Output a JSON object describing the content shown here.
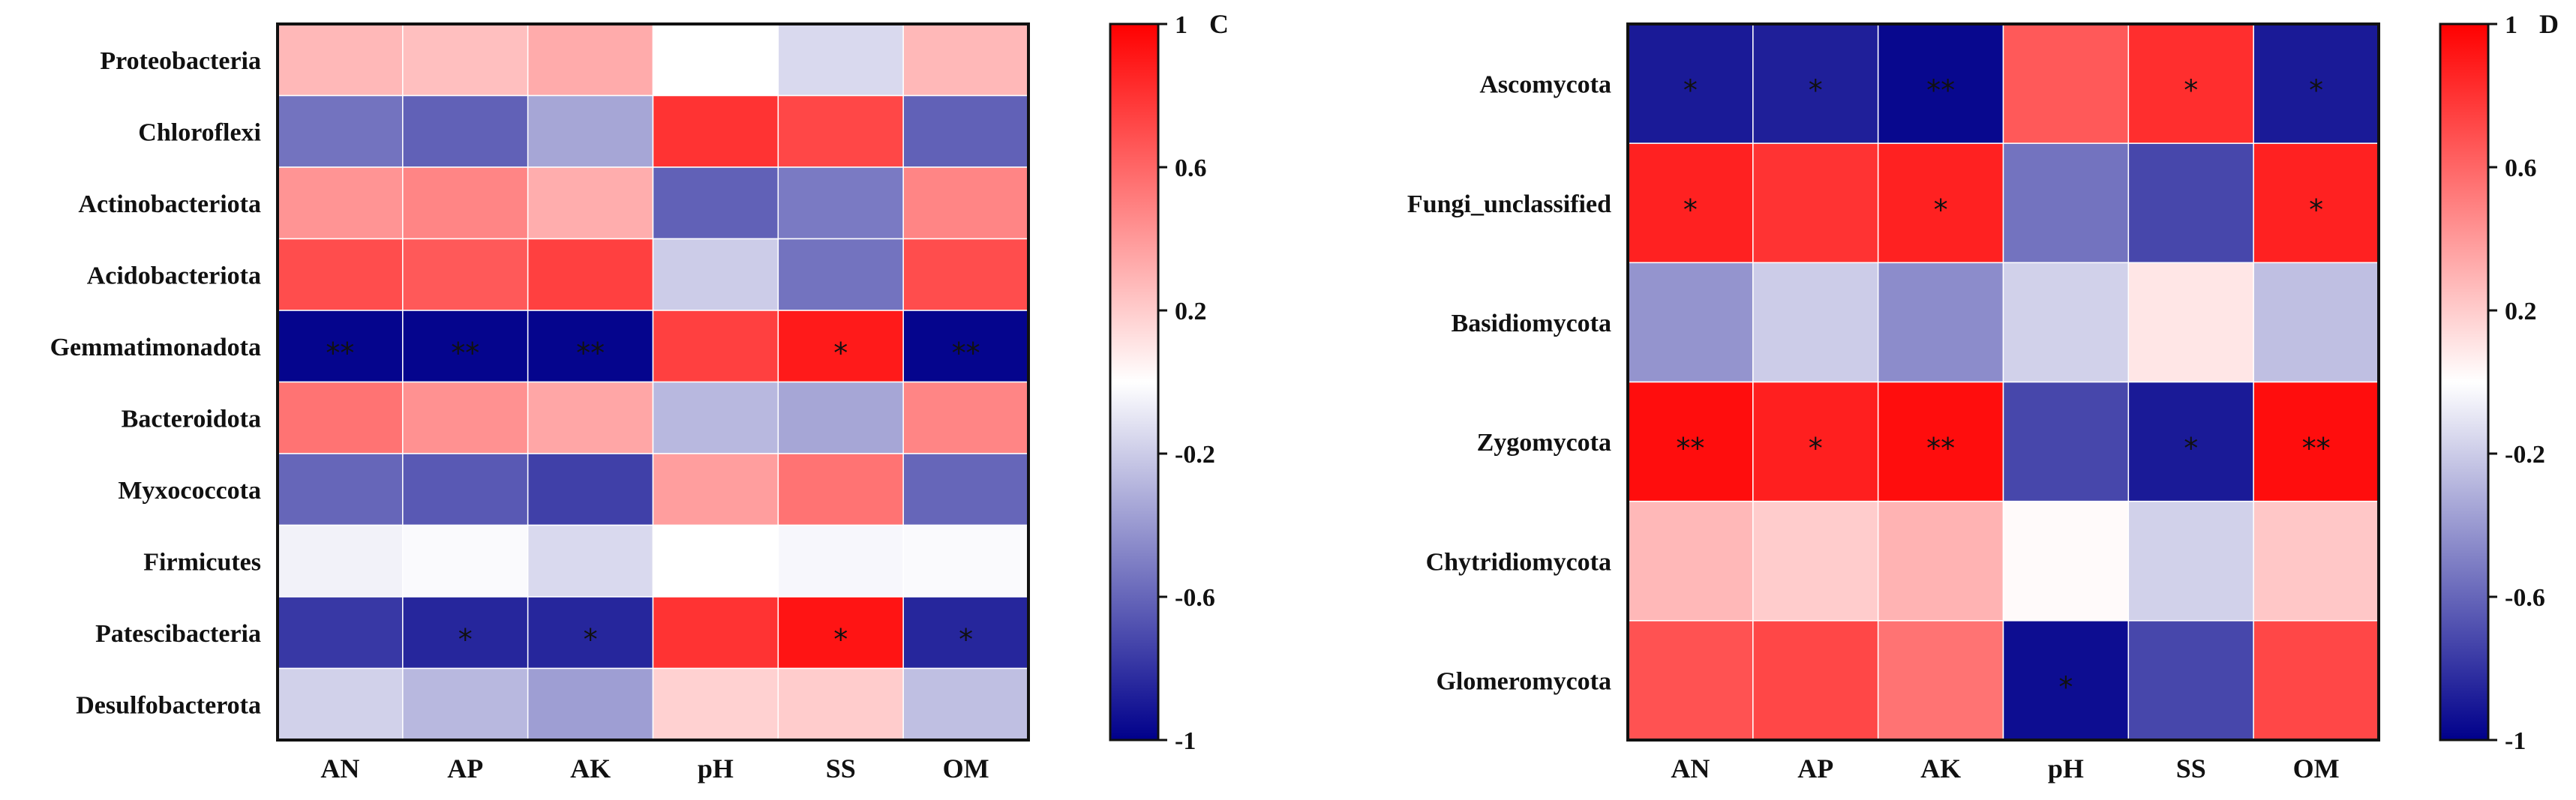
{
  "chart_data": [
    {
      "type": "heatmap",
      "panel_label": "C",
      "columns": [
        "AN",
        "AP",
        "AK",
        "pH",
        "SS",
        "OM"
      ],
      "rows": [
        "Proteobacteria",
        "Chloroflexi",
        "Actinobacteriota",
        "Acidobacteriota",
        "Gemmatimonadota",
        "Bacteroidota",
        "Myxococcota",
        "Firmicutes",
        "Patescibacteria",
        "Desulfobacterota"
      ],
      "values": [
        [
          0.28,
          0.25,
          0.33,
          0.0,
          -0.15,
          0.28
        ],
        [
          -0.55,
          -0.62,
          -0.35,
          0.8,
          0.72,
          -0.62
        ],
        [
          0.42,
          0.48,
          0.32,
          -0.62,
          -0.52,
          0.48
        ],
        [
          0.7,
          0.65,
          0.75,
          -0.2,
          -0.55,
          0.7
        ],
        [
          -0.98,
          -0.98,
          -0.98,
          0.75,
          0.9,
          -0.98
        ],
        [
          0.55,
          0.43,
          0.35,
          -0.28,
          -0.35,
          0.48
        ],
        [
          -0.6,
          -0.65,
          -0.75,
          0.38,
          0.55,
          -0.6
        ],
        [
          -0.05,
          -0.02,
          -0.15,
          0.0,
          -0.03,
          -0.02
        ],
        [
          -0.78,
          -0.85,
          -0.85,
          0.8,
          0.92,
          -0.85
        ],
        [
          -0.18,
          -0.28,
          -0.38,
          0.18,
          0.2,
          -0.25
        ]
      ],
      "significance": [
        [
          "",
          "",
          "",
          "",
          "",
          ""
        ],
        [
          "",
          "",
          "",
          "",
          "",
          ""
        ],
        [
          "",
          "",
          "",
          "",
          "",
          ""
        ],
        [
          "",
          "",
          "",
          "",
          "",
          ""
        ],
        [
          "**",
          "**",
          "**",
          "",
          "*",
          "**"
        ],
        [
          "",
          "",
          "",
          "",
          "",
          ""
        ],
        [
          "",
          "",
          "",
          "",
          "",
          ""
        ],
        [
          "",
          "",
          "",
          "",
          "",
          ""
        ],
        [
          "",
          "*",
          "*",
          "",
          "*",
          "*"
        ],
        [
          "",
          "",
          "",
          "",
          "",
          ""
        ]
      ],
      "colorbar": {
        "min": -1,
        "max": 1,
        "ticks": [
          1,
          0.6,
          0.2,
          -0.2,
          -0.6,
          -1
        ],
        "tick_labels": [
          "1",
          "0.6",
          "0.2",
          "-0.2",
          "-0.6",
          "-1"
        ]
      }
    },
    {
      "type": "heatmap",
      "panel_label": "D",
      "columns": [
        "AN",
        "AP",
        "AK",
        "pH",
        "SS",
        "OM"
      ],
      "rows": [
        "Ascomycota",
        "Fungi_unclassified",
        "Basidiomycota",
        "Zygomycota",
        "Chytridiomycota",
        "Glomeromycota"
      ],
      "values": [
        [
          -0.9,
          -0.88,
          -0.97,
          0.65,
          0.82,
          -0.9
        ],
        [
          0.87,
          0.8,
          0.87,
          -0.55,
          -0.72,
          0.87
        ],
        [
          -0.42,
          -0.2,
          -0.45,
          -0.18,
          0.1,
          -0.25
        ],
        [
          0.95,
          0.88,
          0.95,
          -0.72,
          -0.9,
          0.95
        ],
        [
          0.28,
          0.2,
          0.3,
          0.02,
          -0.18,
          0.22
        ],
        [
          0.68,
          0.72,
          0.55,
          -0.95,
          -0.72,
          0.72
        ]
      ],
      "significance": [
        [
          "*",
          "*",
          "**",
          "",
          "*",
          "*"
        ],
        [
          "*",
          "",
          "*",
          "",
          "",
          "*"
        ],
        [
          "",
          "",
          "",
          "",
          "",
          ""
        ],
        [
          "**",
          "*",
          "**",
          "",
          "*",
          "**"
        ],
        [
          "",
          "",
          "",
          "",
          "",
          ""
        ],
        [
          "",
          "",
          "",
          "*",
          "",
          ""
        ]
      ],
      "colorbar": {
        "min": -1,
        "max": 1,
        "ticks": [
          1,
          0.6,
          0.2,
          -0.2,
          -0.6,
          -1
        ],
        "tick_labels": [
          "1",
          "0.6",
          "0.2",
          "-0.2",
          "-0.6",
          "-1"
        ]
      }
    }
  ],
  "colors": {
    "negative": "#00008b",
    "neutral": "#ffffff",
    "positive": "#ff0000",
    "grid": "#ffffff",
    "frame": "#111111"
  }
}
